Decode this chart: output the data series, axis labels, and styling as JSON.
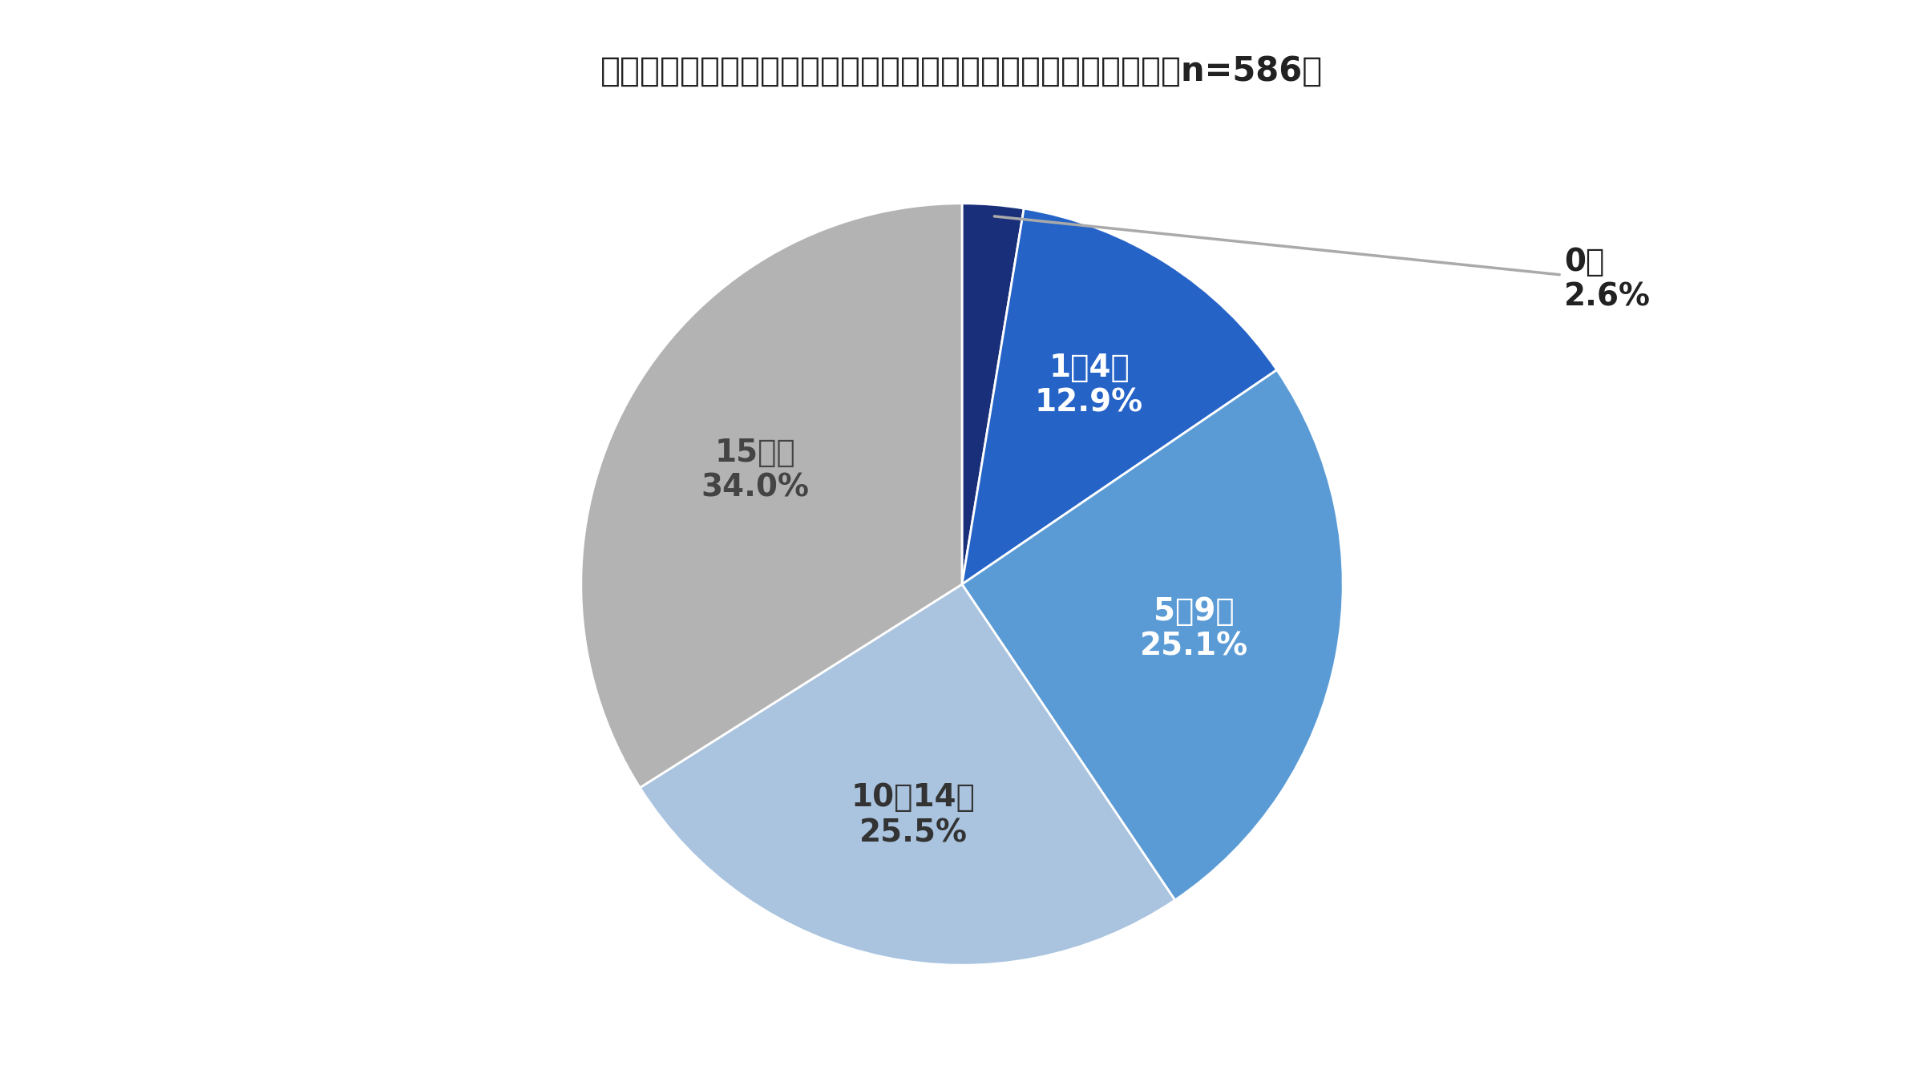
{
  "title": "今後、夏インターンシップに何社エントリーする予定ですか。（n=586）",
  "title_fontsize": 30,
  "slices": [
    {
      "label": "0社",
      "pct_label": "2.6%",
      "value": 2.6,
      "color": "#1a2f7a"
    },
    {
      "label": "1〜4社",
      "pct_label": "12.9%",
      "value": 12.9,
      "color": "#2563c7"
    },
    {
      "label": "5〜9社",
      "pct_label": "25.1%",
      "value": 25.1,
      "color": "#5b9bd5"
    },
    {
      "label": "10〜14社",
      "pct_label": "25.5%",
      "value": 25.5,
      "color": "#aac4e0"
    },
    {
      "label": "15社〜",
      "pct_label": "34.0%",
      "value": 34.0,
      "color": "#b3b3b3"
    }
  ],
  "background_color": "#ffffff",
  "label_fontsize": 28,
  "startangle": 90,
  "text_colors": [
    "outside",
    "#ffffff",
    "#ffffff",
    "#333333",
    "#444444"
  ]
}
